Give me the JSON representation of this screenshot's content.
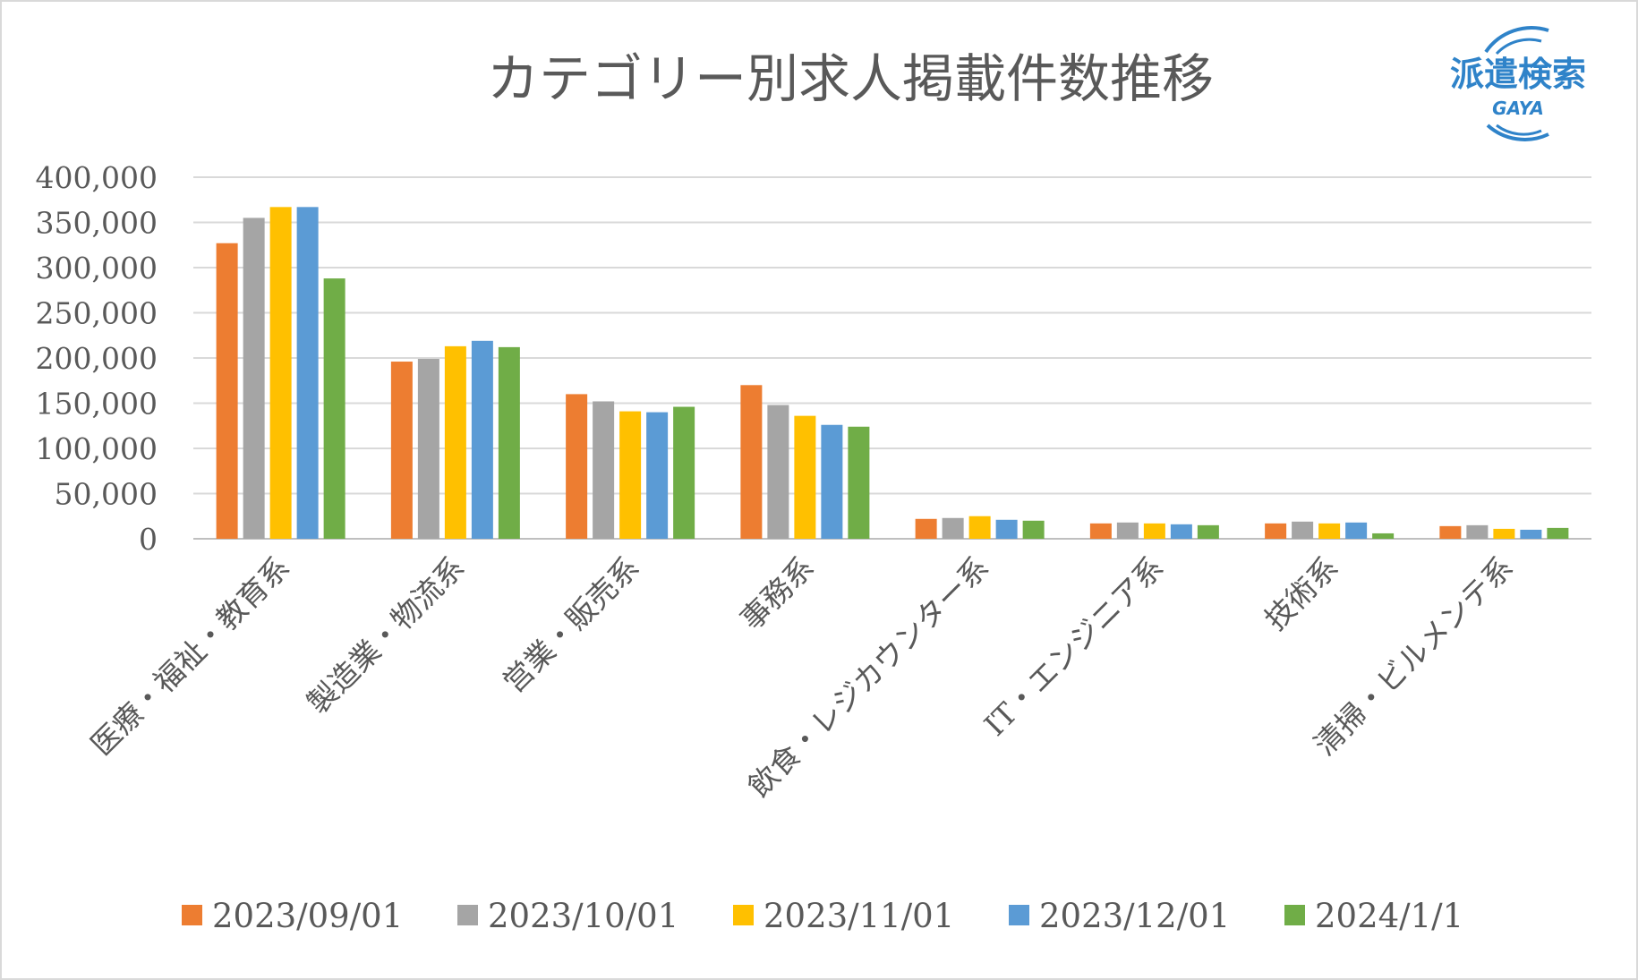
{
  "chart_data": {
    "type": "bar",
    "title": "カテゴリー別求人掲載件数推移",
    "categories": [
      "医療・福祉・教育系",
      "製造業・物流系",
      "営業・販売系",
      "事務系",
      "飲食・レジカウンター系",
      "IT・エンジニア系",
      "技術系",
      "清掃・ビルメンテ系"
    ],
    "series": [
      {
        "name": "2023/09/01",
        "color": "#ed7d31",
        "values": [
          327000,
          196000,
          160000,
          170000,
          22000,
          17000,
          17000,
          14000
        ]
      },
      {
        "name": "2023/10/01",
        "color": "#a5a5a5",
        "values": [
          355000,
          199000,
          152000,
          148000,
          23000,
          18000,
          19000,
          15000
        ]
      },
      {
        "name": "2023/11/01",
        "color": "#ffc000",
        "values": [
          367000,
          213000,
          141000,
          136000,
          25000,
          17000,
          17000,
          11000
        ]
      },
      {
        "name": "2023/12/01",
        "color": "#5b9bd5",
        "values": [
          367000,
          219000,
          140000,
          126000,
          21000,
          16000,
          18000,
          10000
        ]
      },
      {
        "name": "2024/1/1",
        "color": "#70ad47",
        "values": [
          288000,
          212000,
          146000,
          124000,
          20000,
          15000,
          6000,
          12000
        ]
      }
    ],
    "ylim": [
      0,
      400000
    ],
    "yticks": [
      0,
      50000,
      100000,
      150000,
      200000,
      250000,
      300000,
      350000,
      400000
    ],
    "ytick_labels": [
      "0",
      "50,000",
      "100,000",
      "150,000",
      "200,000",
      "250,000",
      "300,000",
      "350,000",
      "400,000"
    ],
    "grid": true,
    "legend_position": "bottom",
    "xlabel": "",
    "ylabel": ""
  },
  "logo": {
    "main_text": "派遣検索",
    "sub_text": "GAYA",
    "color": "#2f83c9",
    "icon": "gaya-logo-icon"
  },
  "colors": {
    "gridline": "#d9d9d9",
    "axis": "#bfbfbf",
    "text": "#595959",
    "border": "#d9d9d9"
  }
}
